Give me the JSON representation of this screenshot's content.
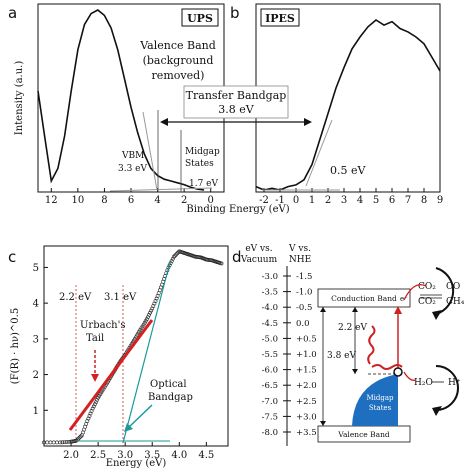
{
  "panel_labels": {
    "a": "a",
    "b": "b",
    "c": "c",
    "d": "d"
  },
  "colors": {
    "curve": "#111111",
    "fit_red": "#d42020",
    "tangent": "#1a9a9a",
    "midgap": "#1e6fbf",
    "arrow_red": "#cc2222",
    "dotted": "#cc3333"
  },
  "chart_data": [
    {
      "panel": "a",
      "type": "line",
      "tag": "UPS",
      "ylabel": "Intensity (a.u.)",
      "xlabel": "Binding Energy (eV)",
      "xlim": [
        13,
        -1
      ],
      "x_ticks": [
        12,
        10,
        8,
        6,
        4,
        2,
        0
      ],
      "x": [
        13,
        12.5,
        12,
        11.5,
        11,
        10.5,
        10,
        9.5,
        9,
        8.5,
        8,
        7.5,
        7,
        6.5,
        6,
        5.5,
        5,
        4.5,
        4,
        3.5,
        3,
        2.5,
        2,
        1.5,
        1,
        0.5
      ],
      "y": [
        0.55,
        0.3,
        0.05,
        0.12,
        0.3,
        0.55,
        0.78,
        0.92,
        0.98,
        1.0,
        0.97,
        0.9,
        0.78,
        0.62,
        0.46,
        0.32,
        0.2,
        0.12,
        0.08,
        0.06,
        0.05,
        0.04,
        0.03,
        0.015,
        0.005,
        0.0
      ],
      "annotations": {
        "valence_band": [
          "Valence Band",
          "(background",
          "removed)"
        ],
        "vbm": [
          "VBM",
          "3.3 eV"
        ],
        "midgap": [
          "Midgap",
          "States",
          "1.7 eV"
        ],
        "transfer": [
          "Transfer Bandgap",
          "3.8 eV"
        ]
      }
    },
    {
      "panel": "b",
      "type": "line",
      "tag": "IPES",
      "xlim": [
        -2,
        9
      ],
      "x_ticks": [
        -2,
        -1,
        0,
        1,
        2,
        3,
        4,
        5,
        6,
        7,
        8,
        9
      ],
      "x": [
        -2.5,
        -2,
        -1.5,
        -1,
        -0.5,
        0,
        0.5,
        1,
        1.5,
        2,
        2.5,
        3,
        3.5,
        4,
        4.5,
        5,
        5.5,
        6,
        6.5,
        7,
        7.5,
        8,
        8.5,
        9
      ],
      "y": [
        0.02,
        0.0,
        0.01,
        0.0,
        0.02,
        0.03,
        0.06,
        0.15,
        0.3,
        0.45,
        0.6,
        0.72,
        0.83,
        0.9,
        0.96,
        1.0,
        0.97,
        0.99,
        0.95,
        0.93,
        0.9,
        0.86,
        0.78,
        0.7
      ],
      "annotations": {
        "onset": "0.5 eV"
      }
    },
    {
      "panel": "c",
      "type": "scatter",
      "ylabel": "(F(R) · hν)^0.5",
      "xlabel": "Energy (eV)",
      "xlim": [
        1.5,
        4.9
      ],
      "ylim": [
        0,
        5.6
      ],
      "x_ticks": [
        2.0,
        2.5,
        3.0,
        3.5,
        4.0,
        4.5
      ],
      "y_ticks": [
        1,
        2,
        3,
        4,
        5
      ],
      "x": [
        1.5,
        1.8,
        2.0,
        2.1,
        2.2,
        2.3,
        2.4,
        2.5,
        2.6,
        2.7,
        2.8,
        2.9,
        3.0,
        3.1,
        3.2,
        3.3,
        3.4,
        3.5,
        3.6,
        3.7,
        3.8,
        3.9,
        4.0,
        4.1,
        4.2,
        4.3,
        4.4,
        4.5,
        4.6,
        4.7,
        4.8
      ],
      "y": [
        0.1,
        0.1,
        0.12,
        0.15,
        0.3,
        0.7,
        1.05,
        1.35,
        1.6,
        1.85,
        2.1,
        2.35,
        2.55,
        2.8,
        3.05,
        3.3,
        3.55,
        3.85,
        4.2,
        4.6,
        5.0,
        5.3,
        5.45,
        5.4,
        5.35,
        5.3,
        5.28,
        5.22,
        5.2,
        5.15,
        5.1
      ],
      "annotations": {
        "e1": "2.2 eV",
        "e2": "3.1 eV",
        "urbach": [
          "Urbach's",
          "Tail"
        ],
        "optical": [
          "Optical",
          "Bandgap"
        ]
      }
    }
  ],
  "panel_d": {
    "headers": {
      "vac": [
        "eV vs.",
        "Vacuum"
      ],
      "nhe": [
        "V vs.",
        "NHE"
      ]
    },
    "vacuum": [
      "-3.0",
      "-3.5",
      "-4.0",
      "-4.5",
      "-5.0",
      "-5.5",
      "-6.0",
      "-6.5",
      "-7.0",
      "-7.5",
      "-8.0"
    ],
    "nhe": [
      "-1.5",
      "-1.0",
      "-0.5",
      "0.0",
      "+0.5",
      "+1.0",
      "+1.5",
      "+2.0",
      "+2.5",
      "+3.0",
      "+3.5"
    ],
    "conduction_band": "Conduction Band",
    "valence_band": "Valence Band",
    "midgap": [
      "Midgap",
      "States"
    ],
    "gap_full": "3.8 eV",
    "gap_mid": "2.2 eV",
    "electron": "e⁻",
    "hole": "h⁺",
    "products": {
      "co2_a": "CO₂",
      "co": "CO",
      "co2_b": "CO₂",
      "ch4": "CH₄",
      "h2o": "H₂O",
      "h_plus": "H⁺"
    }
  }
}
